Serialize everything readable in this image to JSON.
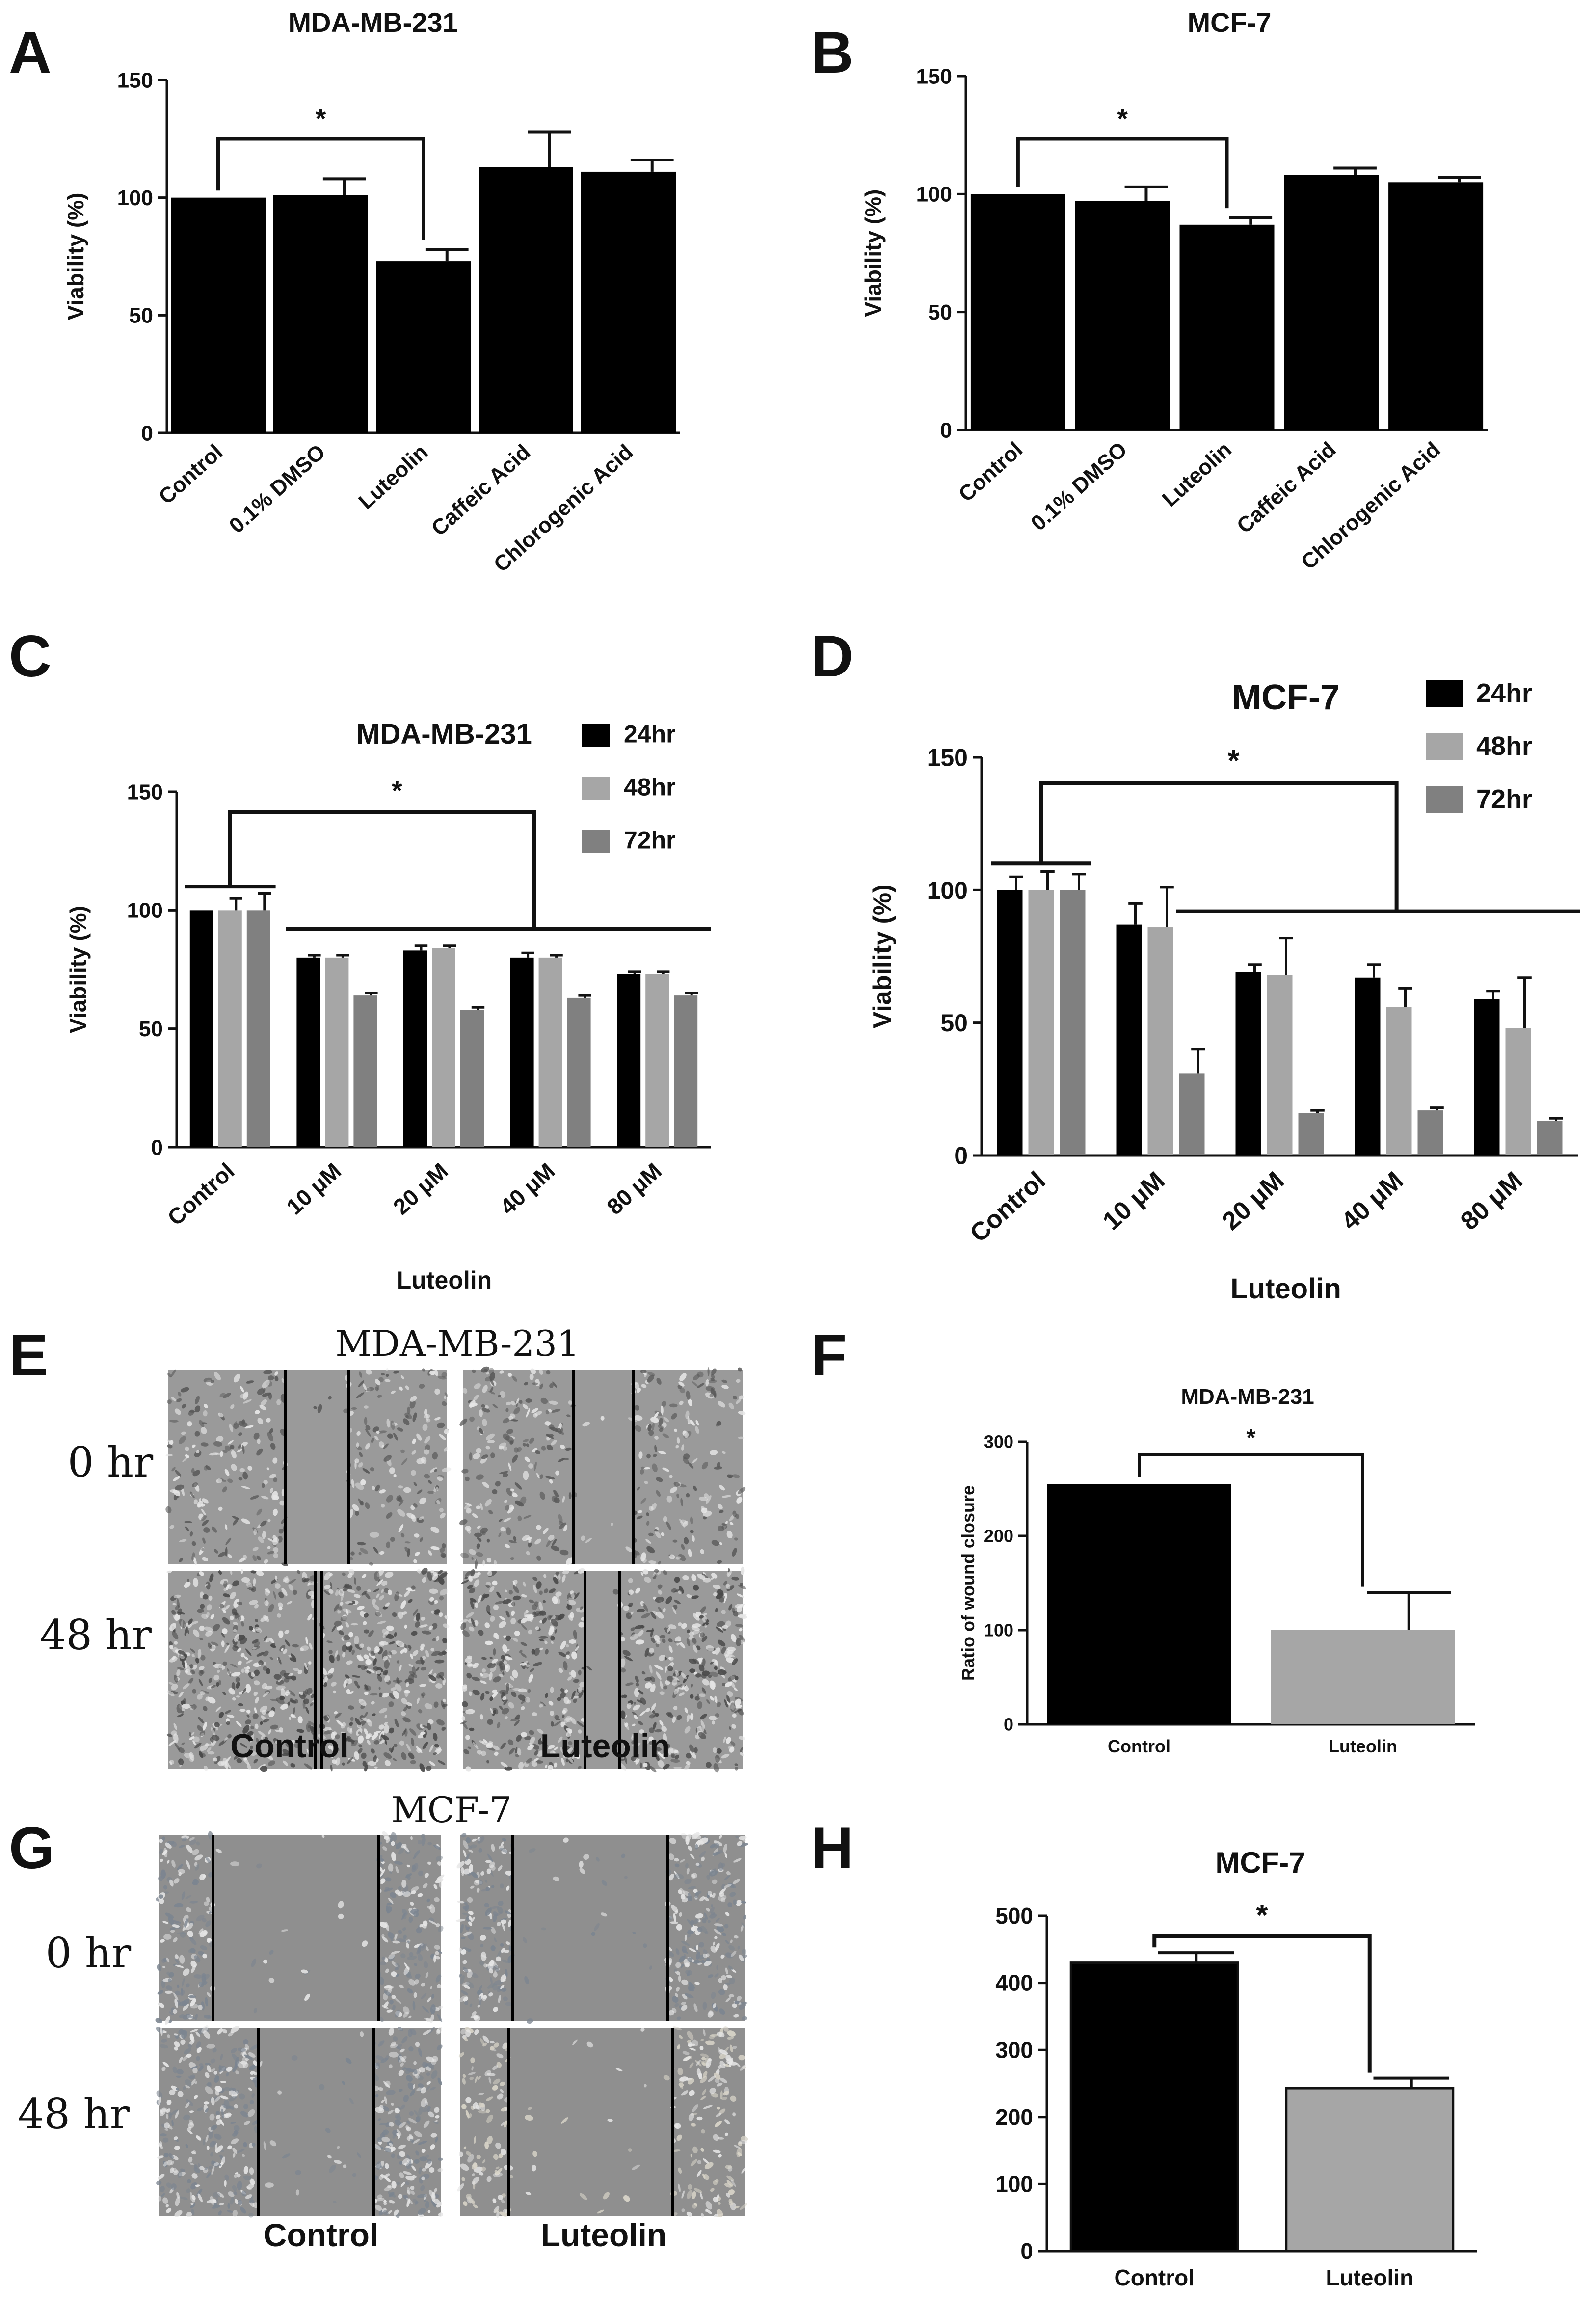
{
  "panels": {
    "A": "A",
    "B": "B",
    "C": "C",
    "D": "D",
    "E": "E",
    "F": "F",
    "G": "G",
    "H": "H"
  },
  "colors": {
    "bar_black": "#000000",
    "bar_light_gray": "#a6a6a6",
    "bar_dark_gray": "#808080",
    "image_bg_mda": "#9a9a9a",
    "image_bg_mcf": "#8f8f8f"
  },
  "micrographs": {
    "E": {
      "title": "MDA-MB-231",
      "rows": [
        "0 hr",
        "48 hr"
      ],
      "cols": [
        "Control",
        "Luteolin"
      ]
    },
    "G": {
      "title": "MCF-7",
      "rows": [
        "0 hr",
        "48 hr"
      ],
      "cols": [
        "Control",
        "Luteolin"
      ]
    }
  },
  "chart_data": [
    {
      "id": "A",
      "type": "bar",
      "title": "MDA-MB-231",
      "ylabel": "Viability (%)",
      "xlabel": "",
      "ylim": [
        0,
        150
      ],
      "yticks": [
        "0",
        "50",
        "100",
        "150"
      ],
      "categories": [
        "Control",
        "0.1% DMSO",
        "Luteolin",
        "Caffeic Acid",
        "Chlorogenic Acid"
      ],
      "values": [
        100,
        101,
        73,
        113,
        111
      ],
      "errors": [
        0,
        7,
        5,
        15,
        5
      ],
      "significance": "*",
      "grid": false
    },
    {
      "id": "B",
      "type": "bar",
      "title": "MCF-7",
      "ylabel": "Viability (%)",
      "xlabel": "",
      "ylim": [
        0,
        150
      ],
      "yticks": [
        "0",
        "50",
        "100",
        "150"
      ],
      "categories": [
        "Control",
        "0.1% DMSO",
        "Luteolin",
        "Caffeic Acid",
        "Chlorogenic Acid"
      ],
      "values": [
        100,
        97,
        87,
        108,
        105
      ],
      "errors": [
        0,
        6,
        3,
        3,
        2
      ],
      "significance": "*",
      "grid": false
    },
    {
      "id": "C",
      "type": "bar",
      "title": "MDA-MB-231",
      "ylabel": "Viability (%)",
      "xlabel": "Luteolin",
      "ylim": [
        0,
        150
      ],
      "yticks": [
        "0",
        "50",
        "100",
        "150"
      ],
      "categories": [
        "Control",
        "10 μM",
        "20 μM",
        "40 μM",
        "80 μM"
      ],
      "series": [
        {
          "name": "24hr",
          "values": [
            100,
            80,
            83,
            80,
            73
          ],
          "errors": [
            0,
            1,
            2,
            2,
            1
          ]
        },
        {
          "name": "48hr",
          "values": [
            100,
            80,
            84,
            80,
            73
          ],
          "errors": [
            5,
            1,
            1,
            1,
            1
          ]
        },
        {
          "name": "72hr",
          "values": [
            100,
            64,
            58,
            63,
            64
          ],
          "errors": [
            7,
            1,
            1,
            1,
            1
          ]
        }
      ],
      "legend": "top-right",
      "significance": "*",
      "grid": false
    },
    {
      "id": "D",
      "type": "bar",
      "title": "MCF-7",
      "ylabel": "Viability (%)",
      "xlabel": "Luteolin",
      "ylim": [
        0,
        150
      ],
      "yticks": [
        "0",
        "50",
        "100",
        "150"
      ],
      "categories": [
        "Control",
        "10 μM",
        "20 μM",
        "40 μM",
        "80 μM"
      ],
      "series": [
        {
          "name": "24hr",
          "values": [
            100,
            87,
            69,
            67,
            59
          ],
          "errors": [
            5,
            8,
            3,
            5,
            3
          ]
        },
        {
          "name": "48hr",
          "values": [
            100,
            86,
            68,
            56,
            48
          ],
          "errors": [
            7,
            15,
            14,
            7,
            19
          ]
        },
        {
          "name": "72hr",
          "values": [
            100,
            31,
            16,
            17,
            13
          ],
          "errors": [
            6,
            9,
            1,
            1,
            1
          ]
        }
      ],
      "legend": "top-right",
      "significance": "*",
      "grid": false
    },
    {
      "id": "F",
      "type": "bar",
      "title": "MDA-MB-231",
      "ylabel": "Ratio of wound closure",
      "xlabel": "",
      "ylim": [
        0,
        300
      ],
      "yticks": [
        "0",
        "100",
        "200",
        "300"
      ],
      "categories": [
        "Control",
        "Luteolin"
      ],
      "values": [
        255,
        100
      ],
      "errors": [
        0,
        40
      ],
      "significance": "*",
      "grid": false
    },
    {
      "id": "H",
      "type": "bar",
      "title": "MCF-7",
      "ylabel": "",
      "xlabel": "",
      "ylim": [
        0,
        500
      ],
      "yticks": [
        "0",
        "100",
        "200",
        "300",
        "400",
        "500"
      ],
      "categories": [
        "Control",
        "Luteolin"
      ],
      "values": [
        430,
        243
      ],
      "errors": [
        15,
        15
      ],
      "significance": "*",
      "grid": false
    }
  ]
}
